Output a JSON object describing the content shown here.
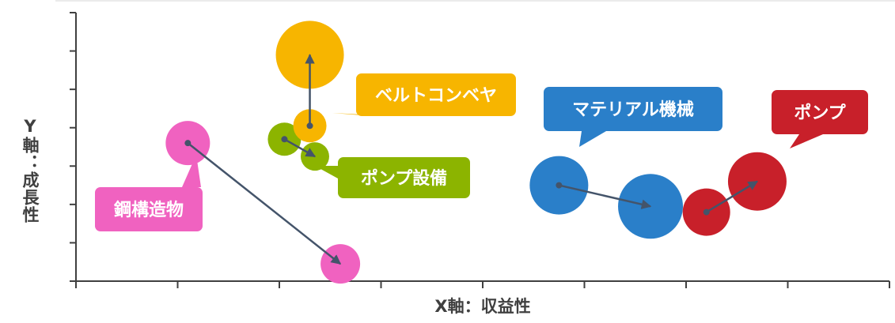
{
  "chart_data": {
    "type": "bubble",
    "xlabel": "X軸：収益性",
    "ylabel": "Y軸：成長性",
    "xlim": [
      0,
      8
    ],
    "ylim": [
      0,
      7
    ],
    "grid": false,
    "series": [
      {
        "name": "鋼構造物",
        "color": "#f062c0",
        "from": {
          "x": 1.1,
          "y": 3.6,
          "size": 28
        },
        "to": {
          "x": 2.6,
          "y": 0.45,
          "size": 25
        }
      },
      {
        "name": "ポンプ設備",
        "color": "#8cb400",
        "from": {
          "x": 2.05,
          "y": 3.7,
          "size": 21
        },
        "to": {
          "x": 2.35,
          "y": 3.25,
          "size": 18
        }
      },
      {
        "name": "ベルトコンベヤ",
        "color": "#f7b500",
        "from": {
          "x": 2.3,
          "y": 4.05,
          "size": 21
        },
        "to": {
          "x": 2.3,
          "y": 5.9,
          "size": 43
        }
      },
      {
        "name": "マテリアル機械",
        "color": "#2a7fc9",
        "from": {
          "x": 4.75,
          "y": 2.5,
          "size": 37
        },
        "to": {
          "x": 5.65,
          "y": 1.95,
          "size": 41
        }
      },
      {
        "name": "ポンプ",
        "color": "#c8202a",
        "from": {
          "x": 6.2,
          "y": 1.8,
          "size": 30
        },
        "to": {
          "x": 6.7,
          "y": 2.6,
          "size": 37
        }
      }
    ]
  }
}
